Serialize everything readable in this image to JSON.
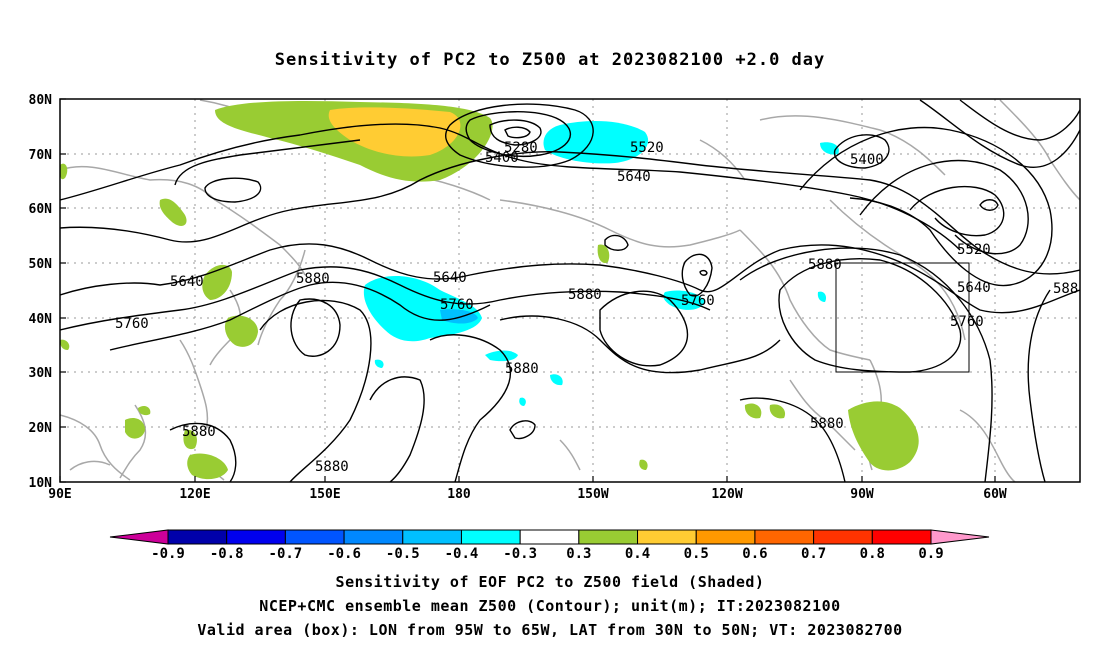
{
  "title": "Sensitivity of PC2 to Z500 at 2023082100 +2.0 day",
  "lat_labels": [
    "80N",
    "70N",
    "60N",
    "50N",
    "40N",
    "30N",
    "20N",
    "10N"
  ],
  "lon_labels": [
    "90E",
    "120E",
    "150E",
    "180",
    "150W",
    "120W",
    "90W",
    "60W"
  ],
  "contour_labels": {
    "c5280": "5280",
    "c5400a": "5400",
    "c5520a": "5520",
    "c5640a": "5640",
    "c5400b": "5400",
    "c5520b": "5520",
    "c5640b": "5640",
    "c5760a": "5760",
    "c5880a": "5880",
    "c5640c": "5640",
    "c5880b": "5880",
    "c5640d": "5640",
    "c5760b": "5760",
    "c5880c": "5880",
    "c5760c": "5760",
    "c5760d": "5760",
    "c5880d": "5880",
    "c5880e": "5880",
    "c5880f": "5880",
    "c5880g": "5880",
    "c588h": "588"
  },
  "colorbar": {
    "ticks": [
      "-0.9",
      "-0.8",
      "-0.7",
      "-0.6",
      "-0.5",
      "-0.4",
      "-0.3",
      "0.3",
      "0.4",
      "0.5",
      "0.6",
      "0.7",
      "0.8",
      "0.9"
    ],
    "colors": [
      "#cc0099",
      "#0000aa",
      "#0000ee",
      "#0055ff",
      "#0088ff",
      "#00c0ff",
      "#00ffff",
      "#ffffff",
      "#99cc33",
      "#ffcc33",
      "#ff9900",
      "#ff6600",
      "#ff3300",
      "#ff0000",
      "#ff99cc"
    ]
  },
  "captions": {
    "line1": "Sensitivity of EOF PC2 to Z500 field (Shaded)",
    "line2": "NCEP+CMC ensemble mean Z500 (Contour); unit(m); IT:2023082100",
    "line3": "Valid area (box): LON from 95W to 65W, LAT from 30N to 50N; VT: 2023082700"
  }
}
